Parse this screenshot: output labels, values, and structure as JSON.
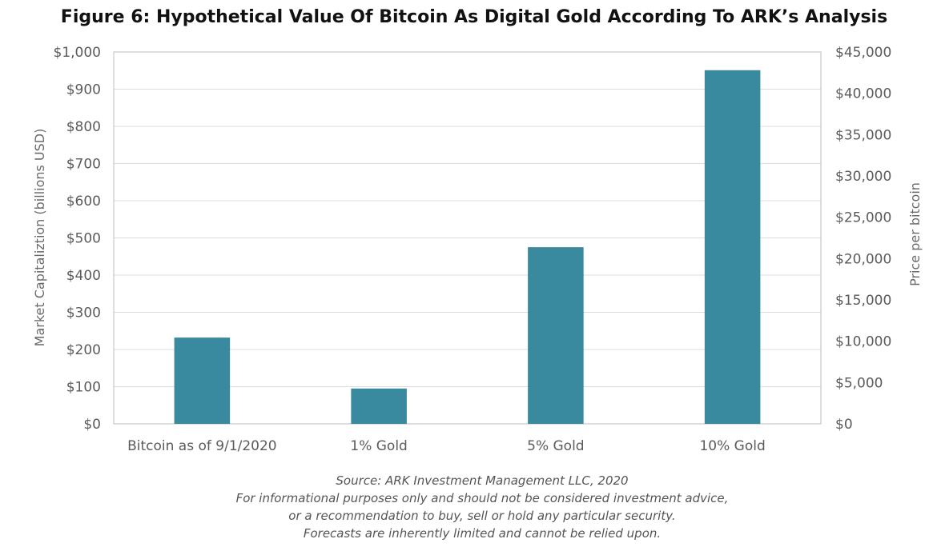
{
  "chart_data": {
    "type": "bar",
    "title": "Figure 6: Hypothetical Value Of Bitcoin As Digital Gold According To ARK’s Analysis",
    "categories": [
      "Bitcoin as of 9/1/2020",
      "1% Gold",
      "5% Gold",
      "10% Gold"
    ],
    "values": [
      232,
      95,
      475,
      951
    ],
    "ylabel": "Market Capitaliztion (billions USD)",
    "ylim": [
      0,
      1000
    ],
    "yticks": [
      "$0",
      "$100",
      "$200",
      "$300",
      "$400",
      "$500",
      "$600",
      "$700",
      "$800",
      "$900",
      "$1,000"
    ],
    "y2label": "Price per bitcoin",
    "y2lim": [
      0,
      45000
    ],
    "y2ticks": [
      "$0",
      "$5,000",
      "$10,000",
      "$15,000",
      "$20,000",
      "$25,000",
      "$30,000",
      "$35,000",
      "$40,000",
      "$45,000"
    ],
    "bar_color": "#3a8a9f",
    "grid": true,
    "legend": "none"
  },
  "source_lines": [
    "Source: ARK Investment Management LLC, 2020",
    "For informational purposes only and should not be considered investment advice,",
    "or a recommendation to buy, sell or hold any particular security.",
    "Forecasts are inherently limited and cannot be relied upon."
  ]
}
